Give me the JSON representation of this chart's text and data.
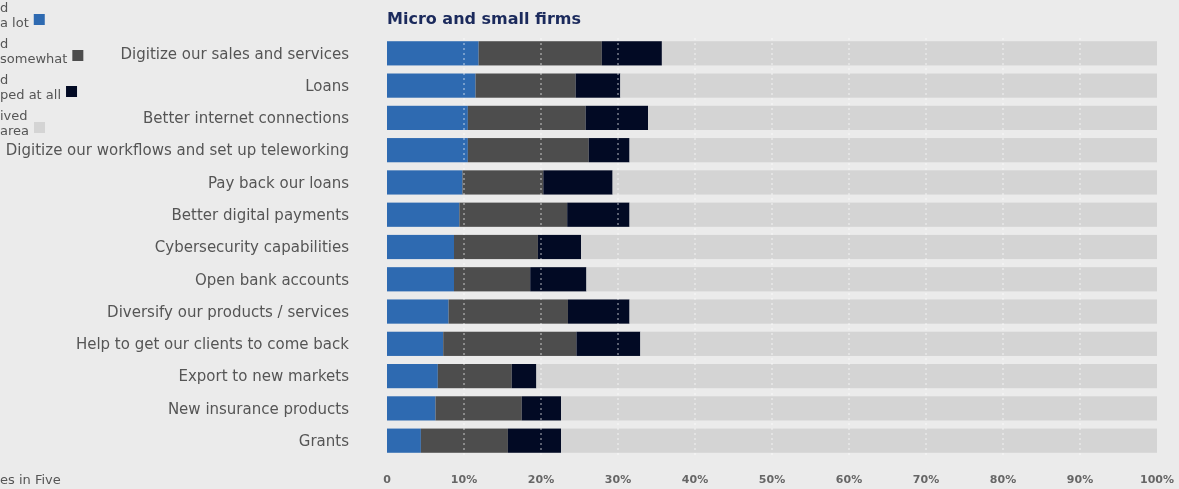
{
  "chart_data": {
    "type": "bar",
    "orientation": "horizontal",
    "stacked": true,
    "title": "Micro and small firms",
    "categories": [
      "Digitize our sales and services",
      "Loans",
      "Better internet connections",
      "Digitize our workflows and set up teleworking",
      "Pay back our loans",
      "Better digital payments",
      "Cybersecurity capabilities",
      "Open bank accounts",
      "Diversify our products / services",
      "Help to get our clients to come back",
      "Export to new markets",
      "New insurance products",
      "Grants"
    ],
    "series": [
      {
        "name": "d\na lot",
        "color": "#2e6ab1",
        "values": [
          11.9,
          11.5,
          10.5,
          10.5,
          9.8,
          9.4,
          8.7,
          8.7,
          8.0,
          7.3,
          6.6,
          6.3,
          4.4
        ]
      },
      {
        "name": "d\nsomewhat",
        "color": "#4d4d4d",
        "values": [
          16.0,
          13.0,
          15.3,
          15.7,
          10.5,
          14.0,
          10.9,
          9.9,
          15.5,
          17.3,
          9.6,
          11.2,
          11.3
        ]
      },
      {
        "name": "d\nped at all",
        "color": "#020a24",
        "values": [
          7.8,
          5.8,
          8.1,
          5.3,
          9.0,
          8.1,
          5.6,
          7.3,
          8.0,
          8.3,
          3.2,
          5.1,
          6.9
        ]
      },
      {
        "name": "ived\narea",
        "color": "#d4d4d4",
        "values": [
          64.3,
          69.7,
          66.1,
          68.5,
          70.7,
          68.5,
          74.8,
          74.1,
          68.5,
          67.1,
          80.6,
          77.4,
          77.4
        ]
      }
    ],
    "xlim": [
      0,
      100
    ],
    "xticks": [
      0,
      {
        "value": 10,
        "label": "10%"
      },
      {
        "value": 20,
        "label": "20%"
      },
      {
        "value": 30,
        "label": "30%"
      },
      {
        "value": 40,
        "label": "40%"
      },
      {
        "value": 50,
        "label": "50%"
      },
      {
        "value": 60,
        "label": "60%"
      },
      {
        "value": 70,
        "label": "70%"
      },
      {
        "value": 80,
        "label": "80%"
      },
      {
        "value": 90,
        "label": "90%"
      },
      {
        "value": 100,
        "label": "100%"
      }
    ],
    "grid": "x",
    "legend": "left",
    "annotations": [
      "es in Five"
    ]
  }
}
